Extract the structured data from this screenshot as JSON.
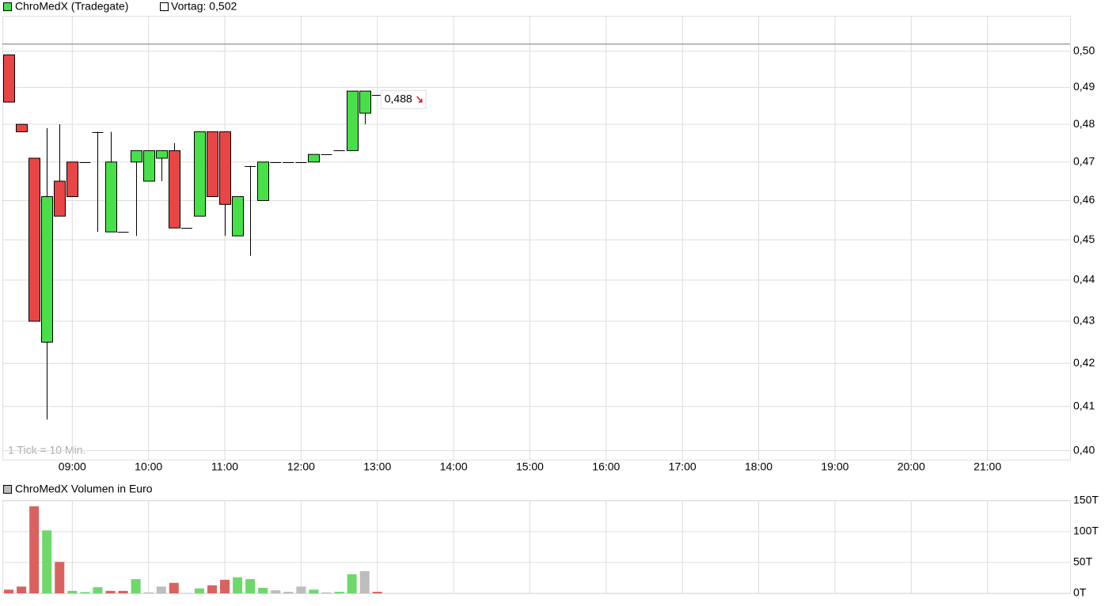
{
  "chart_data": [
    {
      "type": "candlestick",
      "series": {
        "name": "ChroMedX (Tradegate)",
        "up_color": "#48e048",
        "down_color": "#e84646",
        "x": [
          "08:10",
          "08:20",
          "08:30",
          "08:40",
          "08:50",
          "09:00",
          "09:10",
          "09:20",
          "09:30",
          "09:40",
          "09:50",
          "10:00",
          "10:10",
          "10:20",
          "10:30",
          "10:40",
          "10:50",
          "11:00",
          "11:10",
          "11:20",
          "11:30",
          "11:40",
          "11:50",
          "12:00",
          "12:10",
          "12:20",
          "12:30",
          "12:40",
          "12:50",
          "13:00"
        ],
        "open": [
          0.499,
          0.48,
          0.471,
          0.425,
          0.465,
          0.47,
          0.47,
          0.478,
          0.452,
          0.452,
          0.47,
          0.465,
          0.471,
          0.473,
          0.453,
          0.456,
          0.478,
          0.478,
          0.451,
          0.469,
          0.46,
          0.47,
          0.47,
          0.47,
          0.47,
          0.472,
          0.473,
          0.473,
          0.483,
          0.488
        ],
        "high": [
          0.499,
          0.48,
          0.471,
          0.479,
          0.48,
          0.47,
          0.47,
          0.478,
          0.478,
          0.452,
          0.473,
          0.473,
          0.473,
          0.475,
          0.453,
          0.478,
          0.478,
          0.478,
          0.461,
          0.469,
          0.47,
          0.47,
          0.47,
          0.47,
          0.472,
          0.472,
          0.473,
          0.489,
          0.489,
          0.488
        ],
        "low": [
          0.486,
          0.478,
          0.43,
          0.407,
          0.456,
          0.461,
          0.47,
          0.452,
          0.452,
          0.452,
          0.451,
          0.465,
          0.465,
          0.453,
          0.453,
          0.456,
          0.461,
          0.451,
          0.451,
          0.446,
          0.46,
          0.47,
          0.47,
          0.47,
          0.47,
          0.472,
          0.473,
          0.473,
          0.48,
          0.488
        ],
        "close": [
          0.486,
          0.478,
          0.43,
          0.461,
          0.456,
          0.461,
          0.47,
          0.478,
          0.47,
          0.452,
          0.473,
          0.473,
          0.473,
          0.453,
          0.453,
          0.478,
          0.461,
          0.459,
          0.461,
          0.469,
          0.47,
          0.47,
          0.47,
          0.47,
          0.472,
          0.472,
          0.473,
          0.489,
          0.489,
          0.488
        ]
      },
      "reference_line": {
        "name": "Vortag: 0,502",
        "value": 0.502
      },
      "last_price": {
        "value": 0.488,
        "label": "0,488"
      },
      "note": "1 Tick = 10 Min.",
      "log_scale": true,
      "xlim": [
        "08:05",
        "22:05"
      ],
      "xticks": [
        "09:00",
        "10:00",
        "11:00",
        "12:00",
        "13:00",
        "14:00",
        "15:00",
        "16:00",
        "17:00",
        "18:00",
        "19:00",
        "20:00",
        "21:00"
      ],
      "ylim": [
        0.398,
        0.51
      ],
      "yticks": [
        {
          "value": 0.4,
          "label": "0,40"
        },
        {
          "value": 0.41,
          "label": "0,41"
        },
        {
          "value": 0.42,
          "label": "0,42"
        },
        {
          "value": 0.43,
          "label": "0,43"
        },
        {
          "value": 0.44,
          "label": "0,44"
        },
        {
          "value": 0.45,
          "label": "0,45"
        },
        {
          "value": 0.46,
          "label": "0,46"
        },
        {
          "value": 0.47,
          "label": "0,47"
        },
        {
          "value": 0.48,
          "label": "0,48"
        },
        {
          "value": 0.49,
          "label": "0,49"
        },
        {
          "value": 0.5,
          "label": "0,50"
        }
      ],
      "grid": true
    },
    {
      "type": "bar",
      "name": "ChroMedX Volumen in Euro",
      "legend_color": "#bdbdbd",
      "x": [
        "08:10",
        "08:20",
        "08:30",
        "08:40",
        "08:50",
        "09:00",
        "09:10",
        "09:20",
        "09:30",
        "09:40",
        "09:50",
        "10:00",
        "10:10",
        "10:20",
        "10:30",
        "10:40",
        "10:50",
        "11:00",
        "11:10",
        "11:20",
        "11:30",
        "11:40",
        "11:50",
        "12:00",
        "12:10",
        "12:20",
        "12:30",
        "12:40",
        "12:50",
        "13:00"
      ],
      "values": [
        6000,
        11000,
        141000,
        102000,
        51000,
        4000,
        2000,
        10000,
        4000,
        4000,
        23000,
        1500,
        11000,
        17000,
        500,
        8000,
        13000,
        22000,
        26000,
        23000,
        9000,
        5000,
        2500,
        11000,
        6000,
        1500,
        2500,
        31000,
        36000,
        2500
      ],
      "colors": [
        "#d9625f",
        "#d9625f",
        "#d9625f",
        "#6ed86a",
        "#d9625f",
        "#6ed86a",
        "#6ed86a",
        "#6ed86a",
        "#d9625f",
        "#d9625f",
        "#6ed86a",
        "#bdbdbd",
        "#bdbdbd",
        "#d9625f",
        "#bdbdbd",
        "#6ed86a",
        "#d9625f",
        "#d9625f",
        "#6ed86a",
        "#6ed86a",
        "#6ed86a",
        "#bdbdbd",
        "#bdbdbd",
        "#bdbdbd",
        "#6ed86a",
        "#bdbdbd",
        "#6ed86a",
        "#6ed86a",
        "#bdbdbd",
        "#d9625f"
      ],
      "ylim": [
        0,
        150000
      ],
      "yticks": [
        {
          "value": 0,
          "label": "0T"
        },
        {
          "value": 50000,
          "label": "50T"
        },
        {
          "value": 100000,
          "label": "100T"
        },
        {
          "value": 150000,
          "label": "150T"
        }
      ],
      "grid": true
    }
  ]
}
